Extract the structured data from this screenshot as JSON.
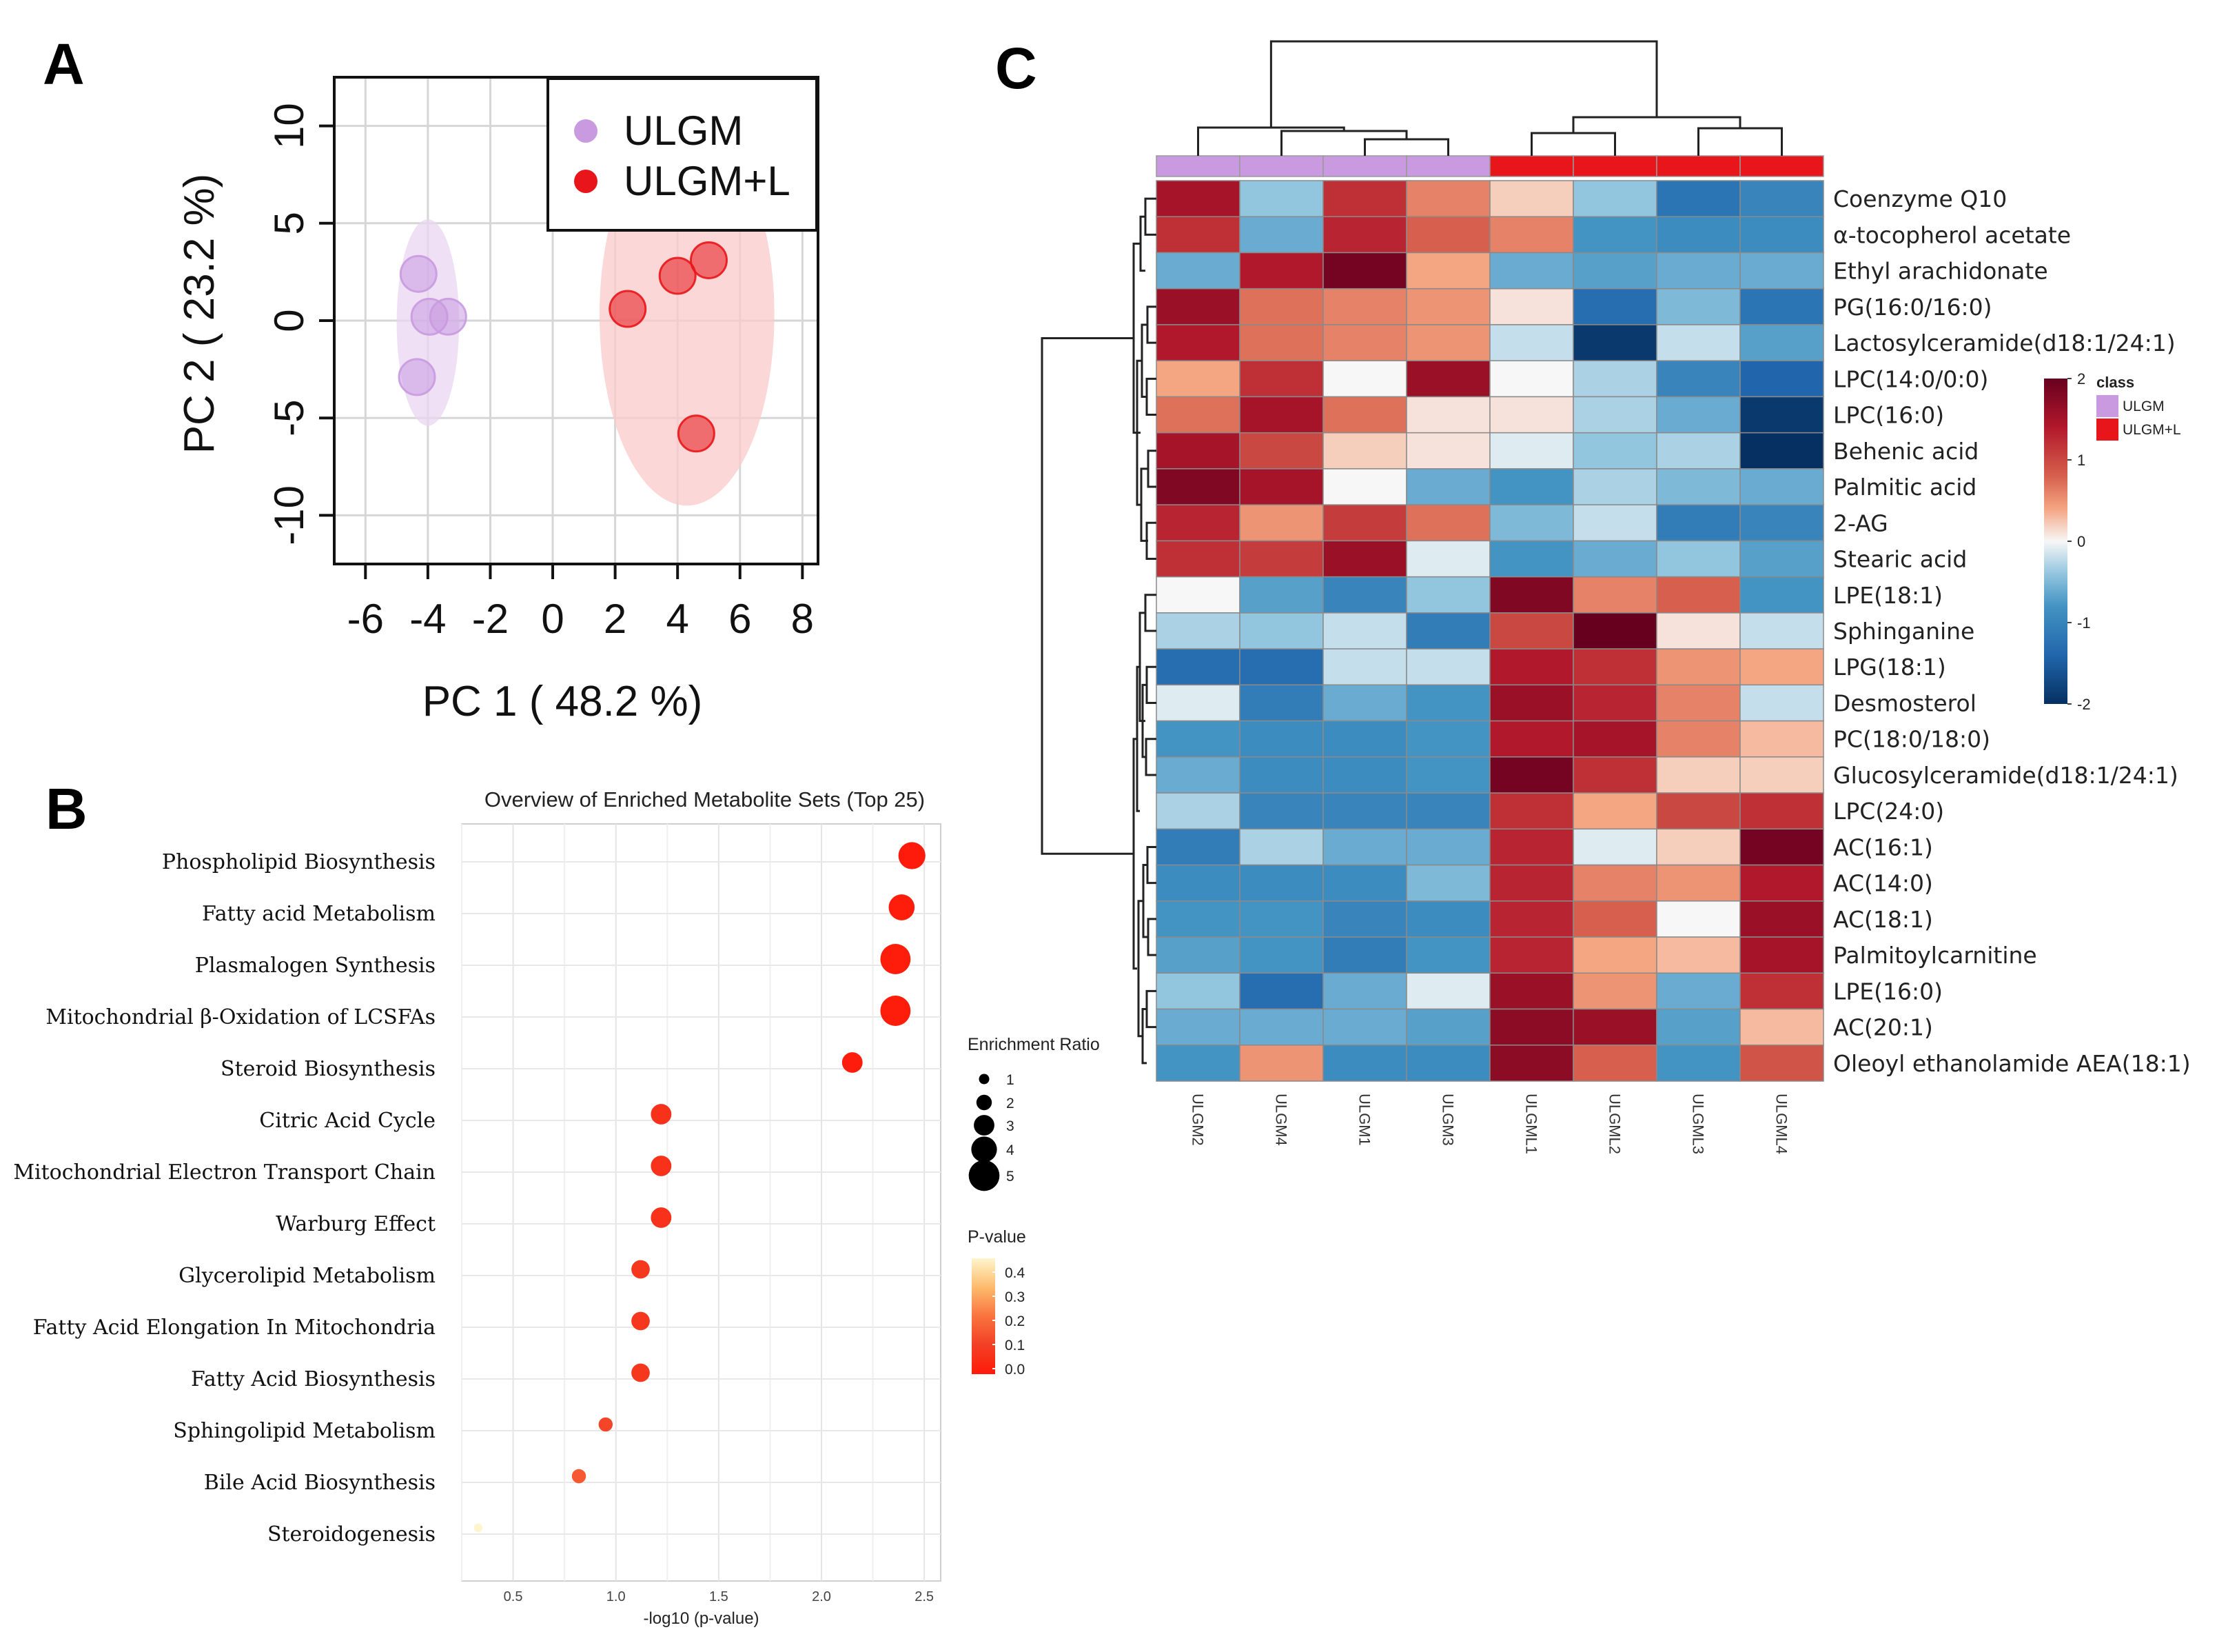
{
  "panels": {
    "a": "A",
    "b": "B",
    "c": "C"
  },
  "colors": {
    "ulgm": "#C99AE0",
    "ulgm_l": "#E8161A",
    "ulgm_ellipse": "#E9D6F2",
    "ulgm_l_ellipse": "#F9CACA",
    "heat_low": "#053061",
    "heat_mid": "#F7F7F7",
    "heat_high": "#67001F"
  },
  "chart_data": [
    {
      "type": "scatter",
      "title": "",
      "xlabel": "PC 1 ( 48.2 %)",
      "ylabel": "PC 2 ( 23.2 %)",
      "xlim": [
        -7,
        8.5
      ],
      "ylim": [
        -12.5,
        12.5
      ],
      "xticks": [
        -6,
        -4,
        -2,
        0,
        2,
        4,
        6,
        8
      ],
      "yticks": [
        10,
        5,
        0,
        -5,
        -10
      ],
      "xtick_labels": [
        "-6",
        "-4",
        "-2",
        "0",
        "2",
        "4",
        "6",
        "8"
      ],
      "ytick_labels": [
        "10",
        "5",
        "0",
        "-5",
        "-10"
      ],
      "grid": true,
      "legend_position": "top-right",
      "series": [
        {
          "name": "ULGM",
          "color": "#C99AE0",
          "ellipse": {
            "cx": -4.0,
            "cy": -0.1,
            "rx": 1.0,
            "ry": 5.3
          },
          "points": [
            [
              -4.3,
              2.4
            ],
            [
              -3.95,
              0.2
            ],
            [
              -3.35,
              0.2
            ],
            [
              -4.35,
              -2.9
            ]
          ]
        },
        {
          "name": "ULGM+L",
          "color": "#E8161A",
          "ellipse": {
            "cx": 4.3,
            "cy": 0.3,
            "rx": 2.8,
            "ry": 9.8
          },
          "points": [
            [
              2.4,
              0.6
            ],
            [
              4.0,
              2.3
            ],
            [
              5.0,
              3.1
            ],
            [
              4.6,
              -5.8
            ]
          ]
        }
      ]
    },
    {
      "type": "scatter",
      "title": "Overview of Enriched Metabolite Sets (Top 25)",
      "xlabel": "-log10 (p-value)",
      "ylabel": "",
      "xlim": [
        0.25,
        2.58
      ],
      "xticks": [
        0.5,
        1.0,
        1.5,
        2.0,
        2.5
      ],
      "xtick_labels": [
        "0.5",
        "1.0",
        "1.5",
        "2.0",
        "2.5"
      ],
      "grid": true,
      "categories": [
        "Phospholipid  Biosynthesis",
        "Fatty acid Metabolism",
        "Plasmalogen Synthesis",
        "Mitochondrial β-Oxidation of LCSFAs",
        "Steroid Biosynthesis",
        "Citric Acid Cycle",
        "Mitochondrial  Electron Transport Chain",
        "Warburg Effect",
        "Glycerolipid Metabolism",
        "Fatty Acid Elongation In Mitochondria",
        "Fatty Acid Biosynthesis",
        "Sphingolipid Metabolism",
        "Bile Acid Biosynthesis",
        "Steroidogenesis"
      ],
      "x": [
        2.44,
        2.39,
        2.36,
        2.36,
        2.15,
        1.22,
        1.22,
        1.22,
        1.12,
        1.12,
        1.12,
        0.95,
        0.82,
        0.33
      ],
      "enrichment_ratio": [
        4.0,
        3.8,
        4.6,
        4.6,
        2.8,
        2.8,
        2.8,
        2.8,
        2.4,
        2.4,
        2.4,
        1.6,
        1.6,
        0.6
      ],
      "p_value": [
        0.0036,
        0.0041,
        0.0044,
        0.0044,
        0.0071,
        0.06,
        0.06,
        0.06,
        0.075,
        0.075,
        0.075,
        0.11,
        0.15,
        0.47
      ],
      "size_legend": {
        "title": "Enrichment Ratio",
        "values": [
          1,
          2,
          3,
          4,
          5
        ],
        "labels": [
          "1",
          "2",
          "3",
          "4",
          "5"
        ]
      },
      "color_legend": {
        "title": "P-value",
        "values": [
          0.4,
          0.3,
          0.2,
          0.1,
          0.0
        ],
        "labels": [
          "0.4",
          "0.3",
          "0.2",
          "0.1",
          "0.0"
        ],
        "colors": [
          "#FFF5CC",
          "#FDBB6C",
          "#F9733F",
          "#F24024",
          "#FF1A0A"
        ]
      }
    },
    {
      "type": "heatmap",
      "title": "",
      "columns": [
        "ULGM2",
        "ULGM4",
        "ULGM1",
        "ULGM3",
        "ULGML1",
        "ULGML2",
        "ULGML3",
        "ULGML4"
      ],
      "column_class": [
        "ULGM",
        "ULGM",
        "ULGM",
        "ULGM",
        "ULGM+L",
        "ULGM+L",
        "ULGM+L",
        "ULGM+L"
      ],
      "rows": [
        "Coenzyme Q10",
        "α-tocopherol acetate",
        "Ethyl arachidonate",
        "PG(16:0/16:0)",
        "Lactosylceramide(d18:1/24:1)",
        "LPC(14:0/0:0)",
        "LPC(16:0)",
        "Behenic acid",
        "Palmitic acid",
        "2-AG",
        "Stearic acid",
        "LPE(18:1)",
        "Sphinganine",
        "LPG(18:1)",
        "Desmosterol",
        "PC(18:0/18:0)",
        "Glucosylceramide(d18:1/24:1)",
        "LPC(24:0)",
        "AC(16:1)",
        "AC(14:0)",
        "AC(18:1)",
        "Palmitoylcarnitine",
        "LPE(16:0)",
        "AC(20:1)",
        "Oleoyl ethanolamide AEA(18:1)"
      ],
      "values": [
        [
          1.5,
          -0.4,
          1.2,
          0.6,
          0.2,
          -0.4,
          -1.2,
          -1.0
        ],
        [
          1.2,
          -0.6,
          1.3,
          0.8,
          0.6,
          -0.8,
          -0.9,
          -0.9
        ],
        [
          -0.6,
          1.4,
          1.9,
          0.4,
          -0.6,
          -0.7,
          -0.6,
          -0.6
        ],
        [
          1.6,
          0.7,
          0.6,
          0.5,
          0.1,
          -1.3,
          -0.5,
          -1.2
        ],
        [
          1.4,
          0.7,
          0.6,
          0.5,
          -0.2,
          -1.9,
          -0.2,
          -0.7
        ],
        [
          0.4,
          1.2,
          0.0,
          1.6,
          0.0,
          -0.3,
          -1.0,
          -1.4
        ],
        [
          0.7,
          1.5,
          0.7,
          0.1,
          0.1,
          -0.3,
          -0.6,
          -1.9
        ],
        [
          1.5,
          1.0,
          0.2,
          0.1,
          -0.1,
          -0.4,
          -0.3,
          -2.0
        ],
        [
          1.8,
          1.5,
          0.0,
          -0.6,
          -0.8,
          -0.3,
          -0.5,
          -0.6
        ],
        [
          1.3,
          0.5,
          1.1,
          0.7,
          -0.5,
          -0.2,
          -1.1,
          -1.0
        ],
        [
          1.2,
          1.1,
          1.6,
          -0.1,
          -0.8,
          -0.6,
          -0.4,
          -0.7
        ],
        [
          0.0,
          -0.7,
          -1.0,
          -0.4,
          1.8,
          0.6,
          0.8,
          -0.8
        ],
        [
          -0.3,
          -0.4,
          -0.2,
          -1.1,
          1.0,
          2.0,
          0.1,
          -0.2
        ],
        [
          -1.3,
          -1.3,
          -0.2,
          -0.2,
          1.4,
          1.2,
          0.5,
          0.4
        ],
        [
          -0.1,
          -1.1,
          -0.6,
          -0.8,
          1.6,
          1.3,
          0.6,
          -0.2
        ],
        [
          -0.8,
          -0.9,
          -0.9,
          -0.8,
          1.4,
          1.5,
          0.6,
          0.3
        ],
        [
          -0.6,
          -0.9,
          -0.9,
          -0.8,
          1.9,
          1.2,
          0.2,
          0.2
        ],
        [
          -0.3,
          -1.0,
          -1.0,
          -1.0,
          1.2,
          0.4,
          1.0,
          1.2
        ],
        [
          -1.1,
          -0.3,
          -0.6,
          -0.6,
          1.3,
          -0.1,
          0.2,
          1.9
        ],
        [
          -0.9,
          -0.9,
          -0.9,
          -0.5,
          1.3,
          0.6,
          0.5,
          1.4
        ],
        [
          -0.8,
          -0.8,
          -1.0,
          -0.9,
          1.3,
          0.8,
          0.0,
          1.6
        ],
        [
          -0.7,
          -0.8,
          -1.1,
          -0.8,
          1.3,
          0.4,
          0.3,
          1.5
        ],
        [
          -0.4,
          -1.3,
          -0.6,
          -0.1,
          1.6,
          0.5,
          -0.6,
          1.2
        ],
        [
          -0.6,
          -0.6,
          -0.6,
          -0.7,
          1.7,
          1.6,
          -0.7,
          0.3
        ],
        [
          -0.8,
          0.5,
          -0.9,
          -0.9,
          1.7,
          0.8,
          -0.8,
          0.9
        ]
      ],
      "colorbar": {
        "values": [
          2,
          1,
          0,
          -1,
          -2
        ],
        "labels": [
          "2",
          "1",
          "0",
          "-1",
          "-2"
        ]
      },
      "class_legend": {
        "title": "class",
        "items": [
          {
            "name": "ULGM",
            "color": "#C99AE0"
          },
          {
            "name": "ULGM+L",
            "color": "#E8161A"
          }
        ]
      }
    }
  ]
}
